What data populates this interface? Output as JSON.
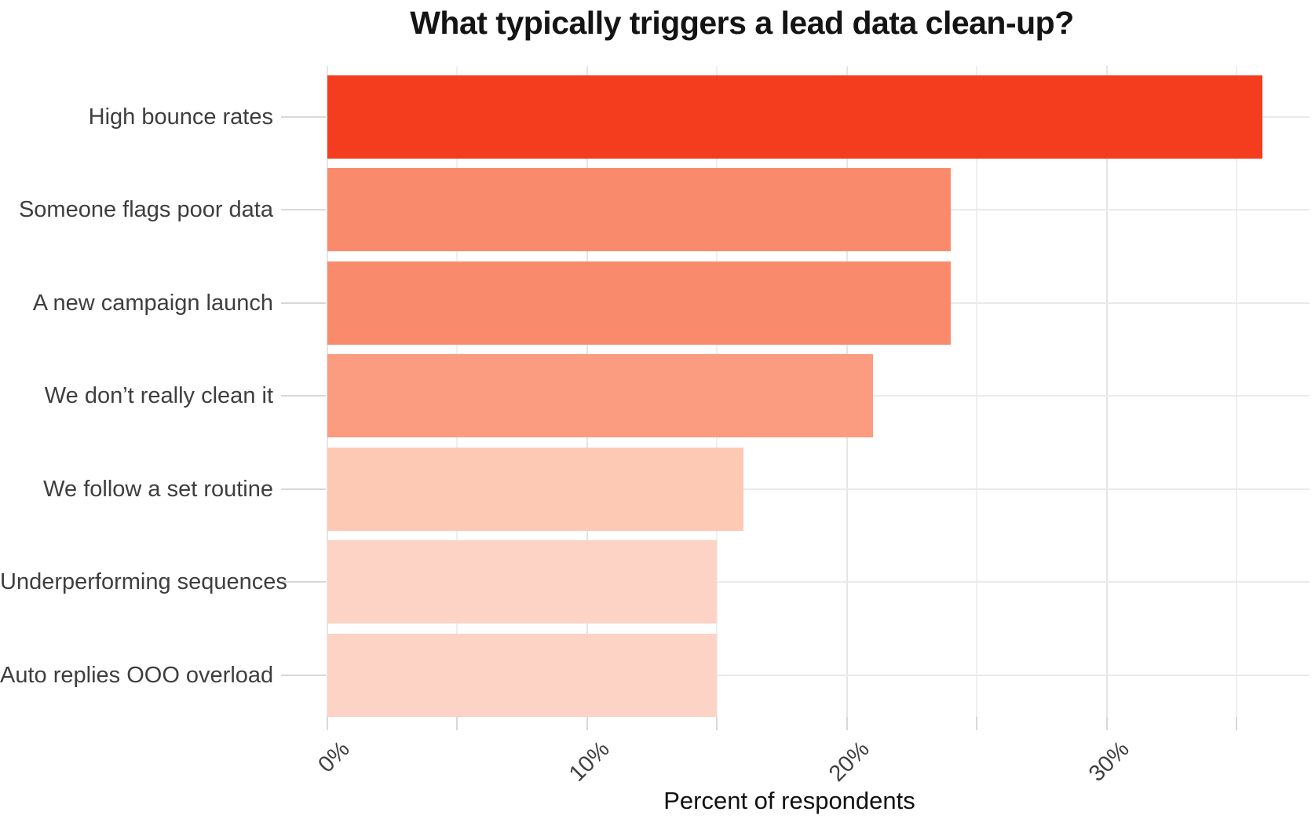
{
  "title": "What typically triggers a lead data clean-up?",
  "chart_data": {
    "type": "bar",
    "orientation": "horizontal",
    "title": "What typically triggers a lead data clean-up?",
    "xlabel": "Percent of respondents",
    "ylabel": "",
    "categories": [
      "High bounce rates",
      "Someone flags poor data",
      "A new campaign launch",
      "We don’t really clean it",
      "We follow a set routine",
      "Underperforming sequences",
      "Auto replies OOO overload"
    ],
    "values": [
      36,
      24,
      24,
      21,
      16,
      15,
      15
    ],
    "value_unit": "%",
    "bar_colors": [
      "#f43c1e",
      "#f98b6c",
      "#f98b6c",
      "#fb9c81",
      "#fec9b4",
      "#fdd3c5",
      "#fdd3c5"
    ],
    "xlim": [
      0,
      37.8
    ],
    "x_major_ticks": [
      {
        "value": 0,
        "label": "0%"
      },
      {
        "value": 10,
        "label": "10%"
      },
      {
        "value": 20,
        "label": "20%"
      },
      {
        "value": 30,
        "label": "30%"
      }
    ],
    "x_minor_tick_values": [
      5,
      15,
      25,
      35
    ],
    "grid": "vertical lines every 5%, horizontal line at each category center",
    "legend_position": "none",
    "colors": {
      "background": "#ffffff",
      "grid_major": "#e5e5e5",
      "grid_minor": "#efefef",
      "grid_row": "#eaeaea",
      "tick": "#d8d8d8",
      "category_text": "#3e3e3e",
      "tick_text": "#3f3f3f",
      "title_text": "#141414",
      "axis_title_text": "#111111"
    }
  }
}
